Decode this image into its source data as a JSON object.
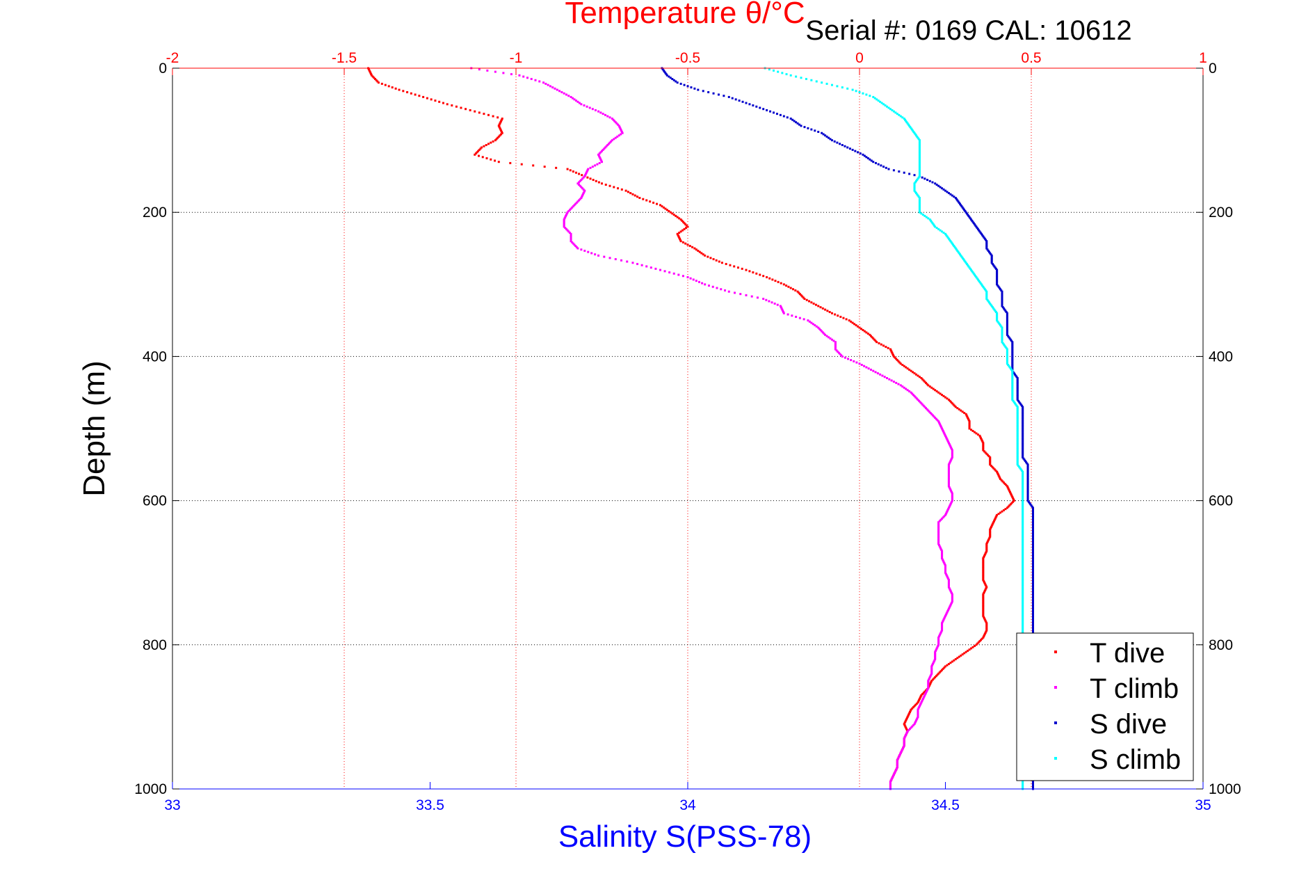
{
  "chart_data": {
    "type": "scatter",
    "title": "Temperature θ/°C",
    "subtitle": "Serial #: 0169 CAL: 10612",
    "xlabel": "Salinity S(PSS-78)",
    "ylabel": "Depth (m)",
    "top_axis": {
      "label": "Temperature θ/°C",
      "range": [
        -2,
        1
      ],
      "ticks": [
        "-2",
        "-1.5",
        "-1",
        "-0.5",
        "0",
        "0.5",
        "1"
      ],
      "color": "#ff0000"
    },
    "bottom_axis": {
      "label": "Salinity S(PSS-78)",
      "range": [
        33,
        35
      ],
      "ticks": [
        "33",
        "33.5",
        "34",
        "34.5",
        "35"
      ],
      "color": "#0000ff"
    },
    "y_axis": {
      "range": [
        0,
        1000
      ],
      "reversed": true,
      "ticks": [
        "0",
        "200",
        "400",
        "600",
        "800",
        "1000"
      ]
    },
    "grid": true,
    "legend": {
      "placement": "bottom-right",
      "entries": [
        "T dive",
        "T climb",
        "S dive",
        "S climb"
      ]
    },
    "series": [
      {
        "name": "T dive",
        "axis": "temperature",
        "color": "#ff0000",
        "depth": [
          0,
          10,
          20,
          30,
          40,
          50,
          60,
          70,
          80,
          90,
          100,
          110,
          120,
          130,
          140,
          150,
          160,
          170,
          180,
          190,
          200,
          210,
          220,
          230,
          240,
          250,
          260,
          270,
          280,
          290,
          300,
          310,
          320,
          330,
          340,
          350,
          360,
          370,
          380,
          390,
          400,
          410,
          420,
          430,
          440,
          450,
          460,
          470,
          480,
          490,
          500,
          510,
          520,
          530,
          540,
          550,
          560,
          570,
          580,
          590,
          600,
          610,
          620,
          630,
          640,
          650,
          660,
          670,
          680,
          690,
          700,
          710,
          720,
          730,
          740,
          750,
          760,
          770,
          780,
          790,
          800,
          810,
          820,
          830,
          840,
          850,
          860,
          870,
          880,
          890,
          900,
          910,
          920,
          930,
          940,
          950,
          960,
          970,
          980,
          990,
          1000
        ],
        "temp": [
          -1.43,
          -1.42,
          -1.4,
          -1.34,
          -1.27,
          -1.2,
          -1.12,
          -1.04,
          -1.05,
          -1.04,
          -1.06,
          -1.1,
          -1.12,
          -1.05,
          -0.85,
          -0.8,
          -0.75,
          -0.68,
          -0.64,
          -0.58,
          -0.55,
          -0.52,
          -0.5,
          -0.53,
          -0.52,
          -0.48,
          -0.45,
          -0.4,
          -0.33,
          -0.27,
          -0.22,
          -0.18,
          -0.16,
          -0.12,
          -0.08,
          -0.03,
          0.0,
          0.03,
          0.05,
          0.09,
          0.1,
          0.12,
          0.15,
          0.18,
          0.2,
          0.23,
          0.26,
          0.28,
          0.31,
          0.32,
          0.32,
          0.35,
          0.36,
          0.36,
          0.38,
          0.38,
          0.4,
          0.41,
          0.43,
          0.44,
          0.45,
          0.43,
          0.4,
          0.39,
          0.38,
          0.38,
          0.37,
          0.37,
          0.36,
          0.36,
          0.36,
          0.36,
          0.37,
          0.36,
          0.36,
          0.36,
          0.36,
          0.37,
          0.37,
          0.36,
          0.34,
          0.31,
          0.28,
          0.25,
          0.23,
          0.21,
          0.2,
          0.18,
          0.17,
          0.15,
          0.14,
          0.13,
          0.14,
          0.13,
          0.13,
          0.12,
          0.11,
          0.11,
          0.1,
          0.09,
          0.09
        ]
      },
      {
        "name": "T climb",
        "axis": "temperature",
        "color": "#ff00ff",
        "depth": [
          0,
          10,
          20,
          30,
          40,
          50,
          60,
          70,
          80,
          90,
          100,
          110,
          120,
          130,
          140,
          150,
          160,
          170,
          180,
          190,
          200,
          210,
          220,
          230,
          240,
          250,
          260,
          270,
          280,
          290,
          300,
          310,
          320,
          330,
          340,
          350,
          360,
          370,
          380,
          390,
          400,
          410,
          420,
          430,
          440,
          450,
          460,
          470,
          480,
          490,
          500,
          510,
          520,
          530,
          540,
          550,
          560,
          570,
          580,
          590,
          600,
          610,
          620,
          630,
          640,
          650,
          660,
          670,
          680,
          690,
          700,
          710,
          720,
          730,
          740,
          750,
          760,
          770,
          780,
          790,
          800,
          810,
          820,
          830,
          840,
          850,
          860,
          870,
          880,
          890,
          900,
          910,
          920,
          930,
          940,
          950,
          960,
          970,
          980,
          990,
          1000
        ],
        "temp": [
          -1.13,
          -0.99,
          -0.92,
          -0.88,
          -0.84,
          -0.81,
          -0.76,
          -0.72,
          -0.7,
          -0.69,
          -0.72,
          -0.74,
          -0.76,
          -0.75,
          -0.79,
          -0.8,
          -0.82,
          -0.8,
          -0.81,
          -0.83,
          -0.85,
          -0.86,
          -0.86,
          -0.84,
          -0.84,
          -0.82,
          -0.76,
          -0.66,
          -0.58,
          -0.5,
          -0.45,
          -0.38,
          -0.28,
          -0.23,
          -0.22,
          -0.15,
          -0.12,
          -0.1,
          -0.07,
          -0.07,
          -0.05,
          0.0,
          0.04,
          0.08,
          0.12,
          0.15,
          0.17,
          0.19,
          0.21,
          0.23,
          0.24,
          0.25,
          0.26,
          0.27,
          0.27,
          0.26,
          0.26,
          0.26,
          0.26,
          0.27,
          0.27,
          0.26,
          0.25,
          0.23,
          0.23,
          0.23,
          0.23,
          0.24,
          0.24,
          0.25,
          0.25,
          0.26,
          0.26,
          0.27,
          0.27,
          0.26,
          0.25,
          0.24,
          0.24,
          0.23,
          0.23,
          0.22,
          0.22,
          0.21,
          0.21,
          0.2,
          0.2,
          0.19,
          0.18,
          0.17,
          0.17,
          0.16,
          0.14,
          0.13,
          0.13,
          0.12,
          0.11,
          0.11,
          0.1,
          0.09,
          0.09
        ]
      },
      {
        "name": "S dive",
        "axis": "salinity",
        "color": "#0000cc",
        "depth": [
          0,
          10,
          20,
          30,
          40,
          50,
          60,
          70,
          80,
          90,
          100,
          110,
          120,
          130,
          140,
          150,
          160,
          170,
          180,
          190,
          200,
          210,
          220,
          230,
          240,
          250,
          260,
          270,
          280,
          290,
          300,
          310,
          320,
          330,
          340,
          350,
          360,
          370,
          380,
          390,
          400,
          410,
          420,
          430,
          440,
          450,
          460,
          470,
          480,
          490,
          500,
          510,
          520,
          530,
          540,
          550,
          560,
          570,
          580,
          590,
          600,
          610,
          620,
          630,
          640,
          650,
          660,
          670,
          680,
          690,
          700,
          710,
          720,
          730,
          740,
          750,
          760,
          770,
          780,
          790,
          800,
          810,
          820,
          830,
          840,
          850,
          860,
          870,
          880,
          890,
          900,
          910,
          920,
          930,
          940,
          950,
          960,
          970,
          980,
          990,
          1000
        ],
        "sal": [
          33.95,
          33.96,
          33.98,
          34.02,
          34.08,
          34.12,
          34.16,
          34.2,
          34.22,
          34.26,
          34.28,
          34.31,
          34.34,
          34.36,
          34.39,
          34.45,
          34.48,
          34.5,
          34.52,
          34.53,
          34.54,
          34.55,
          34.56,
          34.57,
          34.58,
          34.58,
          34.59,
          34.59,
          34.6,
          34.6,
          34.6,
          34.61,
          34.61,
          34.61,
          34.62,
          34.62,
          34.62,
          34.62,
          34.63,
          34.63,
          34.63,
          34.63,
          34.63,
          34.64,
          34.64,
          34.64,
          34.64,
          34.65,
          34.65,
          34.65,
          34.65,
          34.65,
          34.65,
          34.65,
          34.65,
          34.66,
          34.66,
          34.66,
          34.66,
          34.66,
          34.66,
          34.67,
          34.67,
          34.67,
          34.67,
          34.67,
          34.67,
          34.67,
          34.67,
          34.67,
          34.67,
          34.67,
          34.67,
          34.67,
          34.67,
          34.67,
          34.67,
          34.67,
          34.67,
          34.67,
          34.67,
          34.67,
          34.67,
          34.67,
          34.67,
          34.67,
          34.67,
          34.67,
          34.67,
          34.67,
          34.67,
          34.67,
          34.67,
          34.67,
          34.67,
          34.67,
          34.67,
          34.67,
          34.67,
          34.67,
          34.67
        ]
      },
      {
        "name": "S climb",
        "axis": "salinity",
        "color": "#00ffff",
        "depth": [
          0,
          10,
          20,
          30,
          40,
          50,
          60,
          70,
          80,
          90,
          100,
          110,
          120,
          130,
          140,
          150,
          160,
          170,
          180,
          190,
          200,
          210,
          220,
          230,
          240,
          250,
          260,
          270,
          280,
          290,
          300,
          310,
          320,
          330,
          340,
          350,
          360,
          370,
          380,
          390,
          400,
          410,
          420,
          430,
          440,
          450,
          460,
          470,
          480,
          490,
          500,
          510,
          520,
          530,
          540,
          550,
          560,
          570,
          580,
          590,
          600,
          610,
          620,
          630,
          640,
          650,
          660,
          670,
          680,
          690,
          700,
          710,
          720,
          730,
          740,
          750,
          760,
          770,
          780,
          790,
          800,
          810,
          820,
          830,
          840,
          850,
          860,
          870,
          880,
          890,
          900,
          910,
          920,
          930,
          940,
          950,
          960,
          970,
          980,
          990,
          1000
        ],
        "sal": [
          34.15,
          34.2,
          34.26,
          34.32,
          34.36,
          34.38,
          34.4,
          34.42,
          34.43,
          34.44,
          34.45,
          34.45,
          34.45,
          34.45,
          34.45,
          34.45,
          34.44,
          34.44,
          34.45,
          34.45,
          34.45,
          34.47,
          34.48,
          34.5,
          34.51,
          34.52,
          34.53,
          34.54,
          34.55,
          34.56,
          34.57,
          34.58,
          34.58,
          34.59,
          34.6,
          34.6,
          34.61,
          34.61,
          34.61,
          34.62,
          34.62,
          34.62,
          34.63,
          34.63,
          34.63,
          34.63,
          34.63,
          34.64,
          34.64,
          34.64,
          34.64,
          34.64,
          34.64,
          34.64,
          34.64,
          34.64,
          34.65,
          34.65,
          34.65,
          34.65,
          34.65,
          34.65,
          34.65,
          34.65,
          34.65,
          34.65,
          34.65,
          34.65,
          34.65,
          34.65,
          34.65,
          34.65,
          34.65,
          34.65,
          34.65,
          34.65,
          34.65,
          34.65,
          34.65,
          34.65,
          34.65,
          34.65,
          34.65,
          34.65,
          34.65,
          34.65,
          34.65,
          34.65,
          34.65,
          34.65,
          34.65,
          34.65,
          34.65,
          34.65,
          34.65,
          34.65,
          34.65,
          34.65,
          34.65,
          34.65,
          34.65
        ]
      }
    ]
  }
}
